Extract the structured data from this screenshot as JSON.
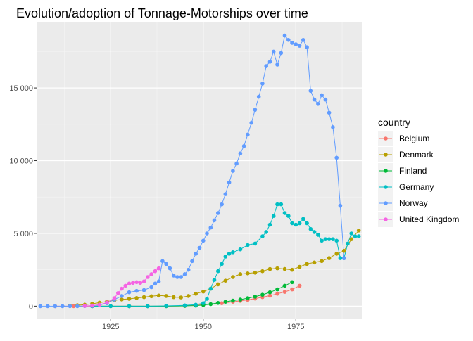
{
  "chart_data": {
    "type": "line",
    "title": "Evolution/adoption of Tonnage-Motorships over time",
    "xlabel": "",
    "ylabel": "",
    "xlim": [
      1905,
      1993
    ],
    "ylim": [
      -900,
      19500
    ],
    "x_ticks": [
      1925,
      1950,
      1975
    ],
    "x_tick_labels": [
      "1925",
      "1950",
      "1975"
    ],
    "y_ticks": [
      0,
      5000,
      10000,
      15000
    ],
    "y_tick_labels": [
      "0",
      "5 000",
      "10 000",
      "15 000"
    ],
    "grid": true,
    "legend_title": "country",
    "legend_position": "right",
    "series": [
      {
        "name": "Belgium",
        "color": "#F8766D",
        "x": [
          1910,
          1915,
          1920,
          1925,
          1930,
          1935,
          1940,
          1945,
          1950,
          1955,
          1958,
          1960,
          1962,
          1964,
          1966,
          1968,
          1970,
          1972,
          1974,
          1976
        ],
        "y": [
          0,
          0,
          0,
          0,
          0,
          0,
          0,
          20,
          100,
          200,
          300,
          360,
          430,
          520,
          620,
          720,
          850,
          980,
          1150,
          1400
        ]
      },
      {
        "name": "Denmark",
        "color": "#B79F00",
        "x": [
          1914,
          1916,
          1918,
          1920,
          1922,
          1924,
          1926,
          1928,
          1930,
          1932,
          1934,
          1936,
          1938,
          1940,
          1942,
          1944,
          1946,
          1948,
          1950,
          1952,
          1954,
          1956,
          1958,
          1960,
          1962,
          1964,
          1966,
          1968,
          1970,
          1972,
          1974,
          1976,
          1978,
          1980,
          1982,
          1984,
          1986,
          1988,
          1990,
          1992
        ],
        "y": [
          30,
          60,
          100,
          160,
          240,
          320,
          400,
          460,
          500,
          560,
          620,
          680,
          730,
          700,
          620,
          600,
          700,
          850,
          1000,
          1200,
          1500,
          1750,
          2000,
          2200,
          2250,
          2300,
          2400,
          2550,
          2600,
          2550,
          2500,
          2700,
          2900,
          3000,
          3100,
          3300,
          3600,
          3800,
          4600,
          5200
        ]
      },
      {
        "name": "Finland",
        "color": "#00BA38",
        "x": [
          1920,
          1925,
          1930,
          1935,
          1940,
          1945,
          1948,
          1950,
          1952,
          1954,
          1956,
          1958,
          1960,
          1962,
          1964,
          1966,
          1968,
          1970,
          1972,
          1974
        ],
        "y": [
          0,
          0,
          0,
          0,
          0,
          20,
          40,
          80,
          140,
          220,
          300,
          380,
          450,
          550,
          650,
          780,
          950,
          1150,
          1400,
          1650
        ]
      },
      {
        "name": "Germany",
        "color": "#00BFC4",
        "x": [
          1920,
          1925,
          1930,
          1935,
          1940,
          1945,
          1948,
          1950,
          1951,
          1952,
          1953,
          1954,
          1955,
          1956,
          1957,
          1958,
          1960,
          1962,
          1964,
          1966,
          1967,
          1968,
          1969,
          1970,
          1971,
          1972,
          1973,
          1974,
          1975,
          1976,
          1977,
          1978,
          1979,
          1980,
          1981,
          1982,
          1983,
          1984,
          1985,
          1986,
          1987,
          1988,
          1989,
          1990,
          1991,
          1992
        ],
        "y": [
          0,
          0,
          0,
          0,
          20,
          50,
          100,
          200,
          500,
          1200,
          1800,
          2400,
          2900,
          3400,
          3600,
          3700,
          3900,
          4200,
          4300,
          4800,
          5100,
          5600,
          6200,
          7000,
          7000,
          6400,
          6200,
          5700,
          5600,
          5700,
          6000,
          5700,
          5300,
          5100,
          4900,
          4500,
          4600,
          4600,
          4600,
          4500,
          3300,
          3300,
          4300,
          5000,
          4800,
          4800
        ]
      },
      {
        "name": "Norway",
        "color": "#619CFF",
        "x": [
          1906,
          1908,
          1910,
          1912,
          1914,
          1916,
          1918,
          1920,
          1922,
          1924,
          1926,
          1928,
          1930,
          1932,
          1934,
          1936,
          1937,
          1938,
          1939,
          1940,
          1941,
          1942,
          1943,
          1944,
          1945,
          1946,
          1947,
          1948,
          1949,
          1950,
          1951,
          1952,
          1953,
          1954,
          1955,
          1956,
          1957,
          1958,
          1959,
          1960,
          1961,
          1962,
          1963,
          1964,
          1965,
          1966,
          1967,
          1968,
          1969,
          1970,
          1971,
          1972,
          1973,
          1974,
          1975,
          1976,
          1977,
          1978,
          1979,
          1980,
          1981,
          1982,
          1983,
          1984,
          1985,
          1986,
          1987,
          1988
        ],
        "y": [
          0,
          0,
          0,
          0,
          0,
          0,
          10,
          30,
          80,
          200,
          450,
          700,
          950,
          1050,
          1100,
          1300,
          1550,
          1700,
          3100,
          2900,
          2600,
          2100,
          2000,
          2000,
          2200,
          2500,
          3100,
          3600,
          4000,
          4500,
          5000,
          5400,
          5900,
          6400,
          7000,
          7700,
          8500,
          9300,
          9800,
          10500,
          11000,
          11800,
          12600,
          13500,
          14400,
          15300,
          16500,
          16800,
          17500,
          16600,
          17400,
          18600,
          18300,
          18100,
          18000,
          17900,
          18300,
          17800,
          14800,
          14200,
          13900,
          14500,
          14200,
          13300,
          12300,
          10200,
          6900,
          3300
        ]
      },
      {
        "name": "United Kingdom",
        "color": "#F564E3",
        "x": [
          1918,
          1920,
          1922,
          1924,
          1926,
          1927,
          1928,
          1929,
          1930,
          1931,
          1932,
          1933,
          1934,
          1935,
          1936,
          1937,
          1938
        ],
        "y": [
          20,
          40,
          100,
          250,
          550,
          900,
          1200,
          1400,
          1550,
          1600,
          1650,
          1600,
          1700,
          2000,
          2200,
          2400,
          2600
        ]
      }
    ]
  }
}
